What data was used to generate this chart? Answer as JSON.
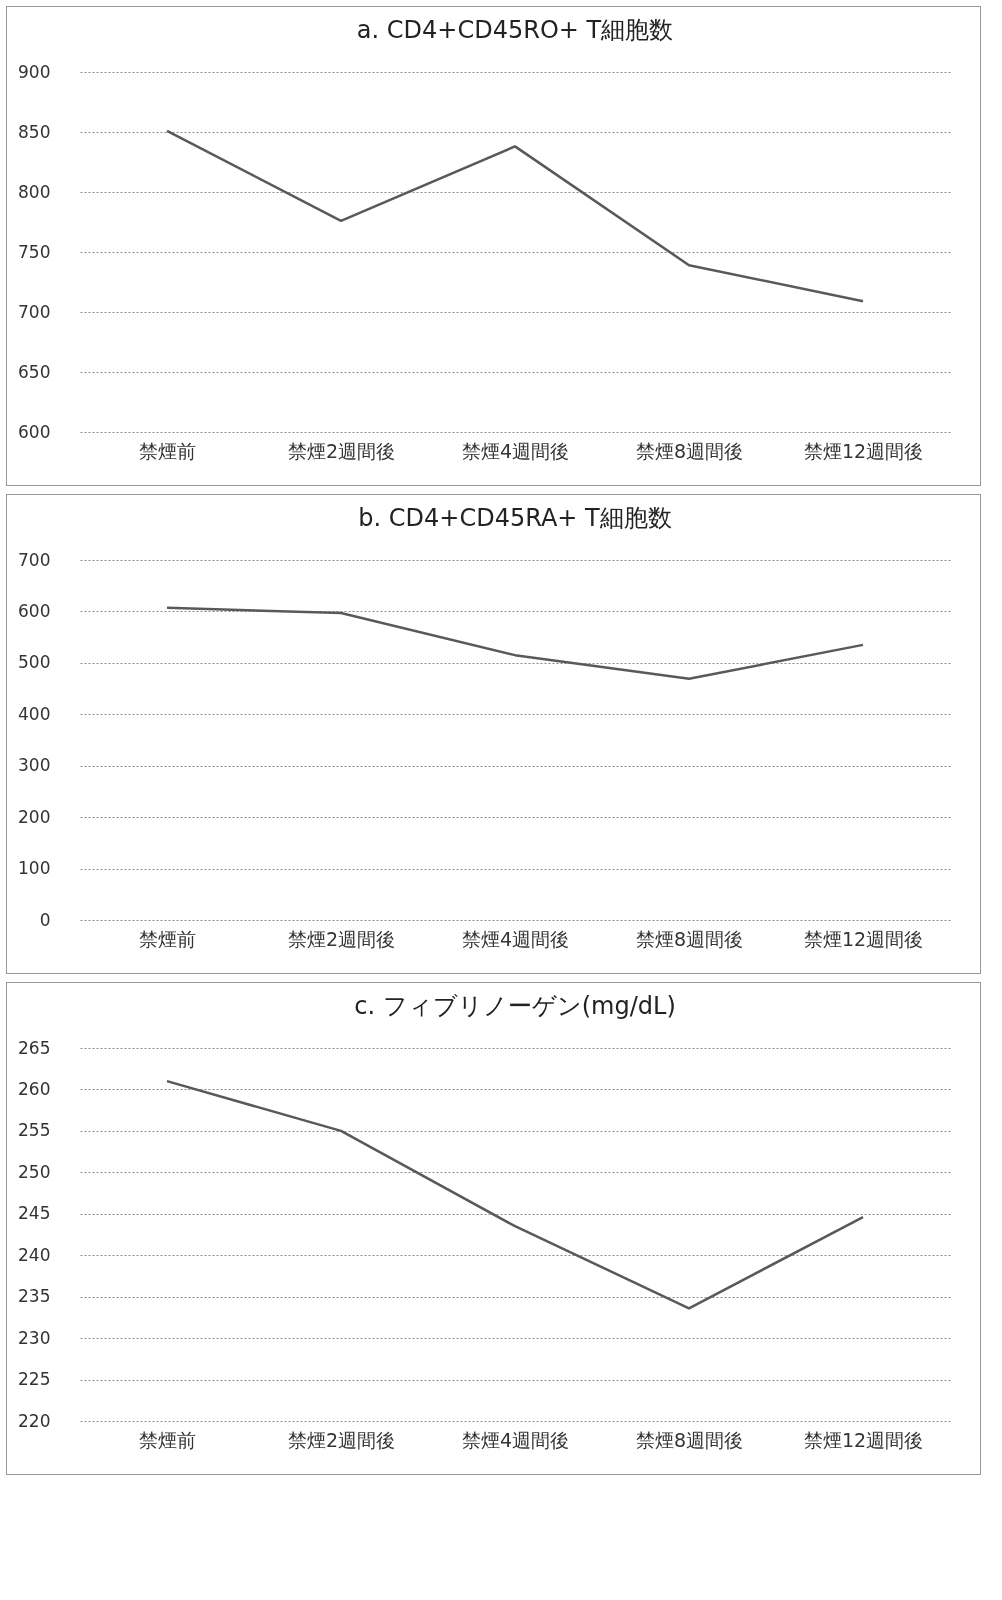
{
  "chart_data": [
    {
      "type": "line",
      "title": "a. CD4+CD45RO+ T細胞数",
      "categories": [
        "禁煙前",
        "禁煙2週間後",
        "禁煙4週間後",
        "禁煙8週間後",
        "禁煙12週間後"
      ],
      "values": [
        851,
        776,
        838,
        739,
        709
      ],
      "color": "#595959",
      "ylim": [
        600,
        900
      ],
      "yticks": [
        600,
        650,
        700,
        750,
        800,
        850,
        900
      ],
      "grid": "y"
    },
    {
      "type": "line",
      "title": "b. CD4+CD45RA+ T細胞数",
      "categories": [
        "禁煙前",
        "禁煙2週間後",
        "禁煙4週間後",
        "禁煙8週間後",
        "禁煙12週間後"
      ],
      "values": [
        607,
        597,
        515,
        469,
        535
      ],
      "color": "#595959",
      "ylim": [
        0,
        700
      ],
      "yticks": [
        0,
        100,
        200,
        300,
        400,
        500,
        600,
        700
      ],
      "grid": "y"
    },
    {
      "type": "line",
      "title": "c. フィブリノーゲン(mg/dL)",
      "categories": [
        "禁煙前",
        "禁煙2週間後",
        "禁煙4週間後",
        "禁煙8週間後",
        "禁煙12週間後"
      ],
      "values": [
        261,
        255,
        243.5,
        233.6,
        244.6
      ],
      "color": "#595959",
      "ylim": [
        220,
        265
      ],
      "yticks": [
        220,
        225,
        230,
        235,
        240,
        245,
        250,
        255,
        260,
        265
      ],
      "grid": "y"
    }
  ]
}
